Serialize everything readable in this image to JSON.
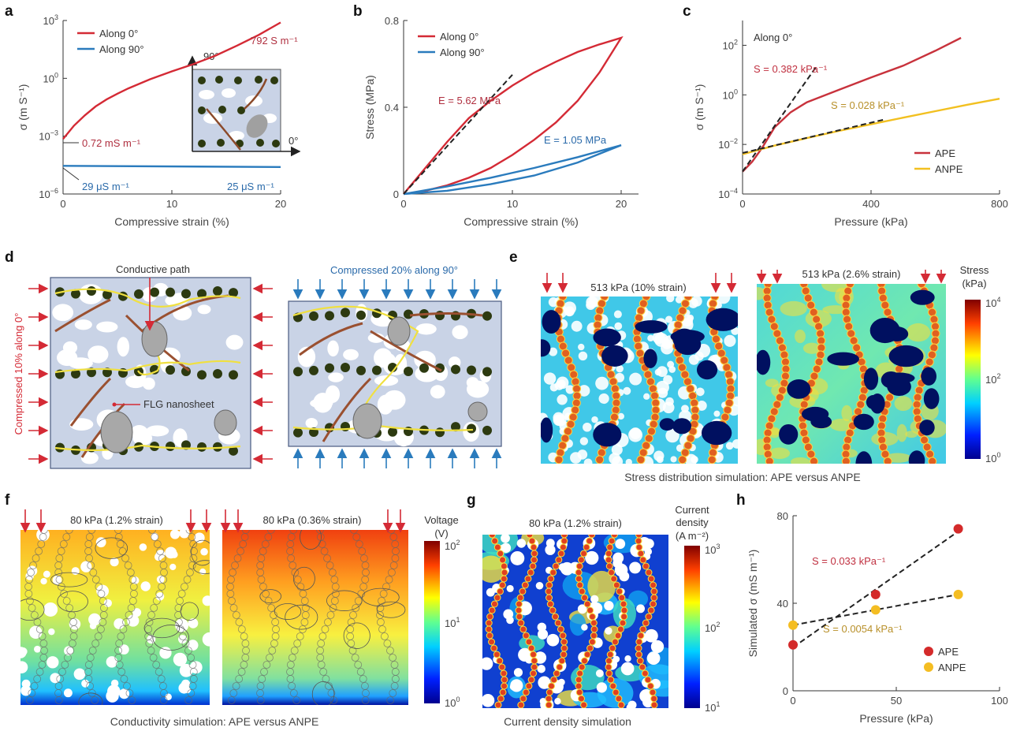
{
  "panels": {
    "a": "a",
    "b": "b",
    "c": "c",
    "d": "d",
    "e": "e",
    "f": "f",
    "g": "g",
    "h": "h"
  },
  "chart_a": {
    "type": "line",
    "xlabel": "Compressive strain (%)",
    "ylabel": "σ (m S⁻¹)",
    "xticks": [
      "0",
      "10",
      "20"
    ],
    "yticks": [
      "10",
      "10",
      "10",
      "10"
    ],
    "yexps": [
      "3",
      "0",
      "−3",
      "−6"
    ],
    "xlim": [
      0,
      20
    ],
    "ylim_log10": [
      -6,
      3
    ],
    "series": [
      {
        "name": "Along 0°",
        "color": "#d42a35",
        "x": [
          0,
          1,
          2,
          3,
          4,
          5,
          6,
          8,
          10,
          12,
          14,
          16,
          18,
          20
        ],
        "y": [
          0.00072,
          0.0035,
          0.012,
          0.035,
          0.08,
          0.16,
          0.3,
          0.9,
          2.3,
          5.5,
          15,
          50,
          180,
          792
        ]
      },
      {
        "name": "Along 90°",
        "color": "#2a7bbd",
        "x": [
          0,
          20
        ],
        "y": [
          2.9e-05,
          2.5e-05
        ]
      }
    ],
    "annotations": {
      "start_red": "0.72 mS m⁻¹",
      "end_red": "792 S m⁻¹",
      "start_blue": "29 μS m⁻¹",
      "end_blue": "25 μS m⁻¹"
    },
    "inset": {
      "y_dir": "90°",
      "x_dir": "0°"
    }
  },
  "chart_b": {
    "type": "line",
    "xlabel": "Compressive strain (%)",
    "ylabel": "Stress (MPa)",
    "xticks": [
      "0",
      "10",
      "20"
    ],
    "yticks": [
      "0",
      "0.4",
      "0.8"
    ],
    "xlim": [
      0,
      20
    ],
    "ylim": [
      0,
      0.8
    ],
    "series": [
      {
        "name": "Along 0°",
        "color": "#d42a35",
        "load_x": [
          0,
          2,
          4,
          6,
          8,
          10,
          12,
          14,
          16,
          18,
          20
        ],
        "load_y": [
          0,
          0.12,
          0.24,
          0.35,
          0.43,
          0.5,
          0.56,
          0.61,
          0.655,
          0.69,
          0.72
        ],
        "unload_x": [
          20,
          18,
          16,
          14,
          12,
          10,
          8,
          6,
          4,
          2,
          0
        ],
        "unload_y": [
          0.72,
          0.56,
          0.43,
          0.33,
          0.25,
          0.18,
          0.12,
          0.075,
          0.04,
          0.015,
          0
        ]
      },
      {
        "name": "Along 90°",
        "color": "#2a7bbd",
        "load_x": [
          0,
          4,
          8,
          12,
          16,
          20
        ],
        "load_y": [
          0,
          0.035,
          0.075,
          0.12,
          0.17,
          0.225
        ],
        "unload_x": [
          20,
          16,
          12,
          8,
          4,
          0
        ],
        "unload_y": [
          0.225,
          0.145,
          0.085,
          0.045,
          0.015,
          0
        ]
      }
    ],
    "fit": {
      "x": [
        0,
        10
      ],
      "y": [
        0,
        0.55
      ]
    },
    "annotations": {
      "red": "E = 5.62 MPa",
      "blue": "E = 1.05 MPa"
    }
  },
  "chart_c": {
    "type": "line",
    "xlabel": "Pressure (kPa)",
    "ylabel": "σ (m S⁻¹)",
    "xticks": [
      "0",
      "400",
      "800"
    ],
    "yticks": [
      "10",
      "10",
      "10",
      "10"
    ],
    "yexps": [
      "2",
      "0",
      "−2",
      "−4"
    ],
    "xlim": [
      0,
      800
    ],
    "ylim_log10": [
      -4,
      3
    ],
    "note": "Along 0°",
    "series": [
      {
        "name": "APE",
        "color": "#c8323c",
        "x": [
          0,
          30,
          60,
          100,
          150,
          200,
          300,
          400,
          500,
          600,
          680
        ],
        "y": [
          0.0008,
          0.002,
          0.007,
          0.05,
          0.2,
          0.5,
          1.6,
          5,
          15,
          60,
          200
        ]
      },
      {
        "name": "ANPE",
        "color": "#f2c020",
        "x": [
          0,
          50,
          100,
          200,
          300,
          400,
          500,
          600,
          700,
          800
        ],
        "y": [
          0.004,
          0.006,
          0.009,
          0.018,
          0.035,
          0.065,
          0.12,
          0.22,
          0.4,
          0.7
        ]
      }
    ],
    "fits": [
      {
        "x": [
          0,
          230
        ],
        "y": [
          0.0008,
          14
        ]
      },
      {
        "x": [
          0,
          440
        ],
        "y": [
          0.0045,
          0.1
        ]
      }
    ],
    "annotations": {
      "ape": "S = 0.382 kPa⁻¹",
      "anpe": "S = 0.028 kPa⁻¹"
    }
  },
  "chart_h": {
    "type": "scatter",
    "xlabel": "Pressure (kPa)",
    "ylabel": "Simulated σ (mS m⁻¹)",
    "xticks": [
      "0",
      "50",
      "100"
    ],
    "yticks": [
      "0",
      "40",
      "80"
    ],
    "xlim": [
      0,
      100
    ],
    "ylim": [
      0,
      80
    ],
    "series": [
      {
        "name": "APE",
        "color": "#d42a2a",
        "x": [
          0,
          40,
          80
        ],
        "y": [
          21,
          44,
          74
        ]
      },
      {
        "name": "ANPE",
        "color": "#f4bd22",
        "x": [
          0,
          40,
          80
        ],
        "y": [
          30,
          37,
          44
        ]
      }
    ],
    "annotations": {
      "ape": "S = 0.033 kPa⁻¹",
      "anpe": "S = 0.0054 kPa⁻¹"
    }
  },
  "panel_d": {
    "left_side": "Compressed 10% along 0°",
    "top_right": "Compressed 20% along 90°",
    "path": "Conductive path",
    "flg": "FLG nanosheet"
  },
  "panel_e": {
    "left": "513 kPa (10% strain)",
    "right": "513 kPa (2.6% strain)",
    "cbar_title1": "Stress",
    "cbar_title2": "(kPa)",
    "cbar_top": "10",
    "cbar_top_exp": "4",
    "cbar_mid": "10",
    "cbar_mid_exp": "2",
    "cbar_bot": "10",
    "cbar_bot_exp": "0",
    "caption": "Stress distribution simulation: APE versus ANPE"
  },
  "panel_f": {
    "left": "80 kPa (1.2% strain)",
    "right": "80 kPa (0.36% strain)",
    "cbar_title1": "Voltage",
    "cbar_title2": "(V)",
    "cbar_top": "10",
    "cbar_top_exp": "2",
    "cbar_mid": "10",
    "cbar_mid_exp": "1",
    "cbar_bot": "10",
    "cbar_bot_exp": "0",
    "caption": "Conductivity simulation: APE versus ANPE"
  },
  "panel_g": {
    "title": "80 kPa (1.2% strain)",
    "cbar_title1": "Current",
    "cbar_title2": "density",
    "cbar_title3": "(A m⁻²)",
    "cbar_top": "10",
    "cbar_top_exp": "3",
    "cbar_mid": "10",
    "cbar_mid_exp": "2",
    "cbar_bot": "10",
    "cbar_bot_exp": "1",
    "caption": "Current density simulation"
  },
  "colors": {
    "red": "#d42a35",
    "blue": "#2a7bbd",
    "yellow": "#f2c020",
    "panel_bg": "#c9d3e6"
  }
}
